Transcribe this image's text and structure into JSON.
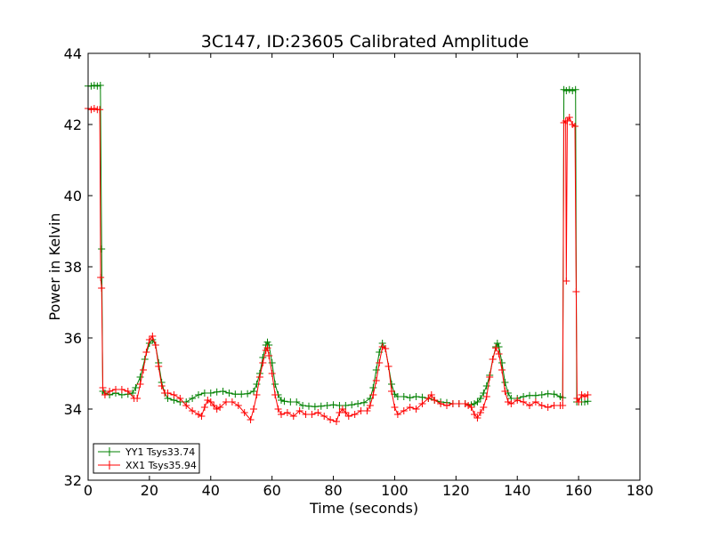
{
  "chart_data": {
    "type": "line",
    "title": "3C147, ID:23605 Calibrated Amplitude",
    "xlabel": "Time (seconds)",
    "ylabel": "Power in Kelvin",
    "xlim": [
      0,
      180
    ],
    "ylim": [
      32,
      44
    ],
    "xticks": [
      0,
      20,
      40,
      60,
      80,
      100,
      120,
      140,
      160,
      180
    ],
    "yticks": [
      32,
      34,
      36,
      38,
      40,
      42,
      44
    ],
    "grid": false,
    "legend_position": "lower-left",
    "marker": "plus",
    "series": [
      {
        "name": "YY1 Tsys33.74",
        "color": "#008000",
        "points": [
          [
            0,
            43.08
          ],
          [
            1,
            43.08
          ],
          [
            2,
            43.1
          ],
          [
            3,
            43.08
          ],
          [
            4,
            43.1
          ],
          [
            4.4,
            38.5
          ],
          [
            4.8,
            34.5
          ],
          [
            5.5,
            34.45
          ],
          [
            7,
            34.4
          ],
          [
            9,
            34.45
          ],
          [
            11,
            34.4
          ],
          [
            13,
            34.42
          ],
          [
            14.5,
            34.45
          ],
          [
            15.5,
            34.6
          ],
          [
            17,
            34.9
          ],
          [
            18.5,
            35.4
          ],
          [
            20,
            35.85
          ],
          [
            21,
            35.95
          ],
          [
            22,
            35.8
          ],
          [
            23,
            35.3
          ],
          [
            24,
            34.75
          ],
          [
            25,
            34.45
          ],
          [
            26,
            34.3
          ],
          [
            28,
            34.25
          ],
          [
            30,
            34.2
          ],
          [
            32,
            34.2
          ],
          [
            34,
            34.3
          ],
          [
            36,
            34.4
          ],
          [
            38,
            34.45
          ],
          [
            40,
            34.45
          ],
          [
            42,
            34.48
          ],
          [
            44,
            34.5
          ],
          [
            46,
            34.45
          ],
          [
            48,
            34.42
          ],
          [
            50,
            34.42
          ],
          [
            52,
            34.43
          ],
          [
            54,
            34.5
          ],
          [
            55,
            34.7
          ],
          [
            56,
            35.0
          ],
          [
            57,
            35.45
          ],
          [
            58,
            35.8
          ],
          [
            58.5,
            35.88
          ],
          [
            59,
            35.8
          ],
          [
            60,
            35.3
          ],
          [
            61,
            34.7
          ],
          [
            62,
            34.4
          ],
          [
            63,
            34.25
          ],
          [
            64,
            34.22
          ],
          [
            66,
            34.2
          ],
          [
            68,
            34.2
          ],
          [
            70,
            34.1
          ],
          [
            72,
            34.08
          ],
          [
            74,
            34.07
          ],
          [
            76,
            34.08
          ],
          [
            78,
            34.1
          ],
          [
            80,
            34.12
          ],
          [
            82,
            34.1
          ],
          [
            84,
            34.1
          ],
          [
            86,
            34.12
          ],
          [
            88,
            34.15
          ],
          [
            90,
            34.18
          ],
          [
            92,
            34.3
          ],
          [
            93,
            34.6
          ],
          [
            94,
            35.1
          ],
          [
            95,
            35.6
          ],
          [
            96,
            35.85
          ],
          [
            97,
            35.7
          ],
          [
            98,
            35.2
          ],
          [
            99,
            34.7
          ],
          [
            100,
            34.42
          ],
          [
            101,
            34.35
          ],
          [
            103,
            34.35
          ],
          [
            105,
            34.32
          ],
          [
            107,
            34.35
          ],
          [
            109,
            34.33
          ],
          [
            111,
            34.3
          ],
          [
            113,
            34.25
          ],
          [
            115,
            34.2
          ],
          [
            117,
            34.18
          ],
          [
            119,
            34.15
          ],
          [
            121,
            34.15
          ],
          [
            123,
            34.15
          ],
          [
            125,
            34.12
          ],
          [
            126,
            34.15
          ],
          [
            127,
            34.2
          ],
          [
            128,
            34.3
          ],
          [
            129,
            34.45
          ],
          [
            130,
            34.65
          ],
          [
            131,
            34.95
          ],
          [
            132,
            35.4
          ],
          [
            133,
            35.75
          ],
          [
            133.5,
            35.85
          ],
          [
            134,
            35.75
          ],
          [
            135,
            35.3
          ],
          [
            136,
            34.75
          ],
          [
            137,
            34.45
          ],
          [
            138,
            34.3
          ],
          [
            140,
            34.3
          ],
          [
            142,
            34.35
          ],
          [
            144,
            34.38
          ],
          [
            146,
            34.38
          ],
          [
            148,
            34.4
          ],
          [
            150,
            34.43
          ],
          [
            152,
            34.42
          ],
          [
            154,
            34.35
          ],
          [
            154.8,
            34.32
          ],
          [
            155.2,
            42.98
          ],
          [
            156,
            42.95
          ],
          [
            157,
            42.98
          ],
          [
            158,
            42.95
          ],
          [
            159,
            42.98
          ],
          [
            159.4,
            34.2
          ],
          [
            160,
            34.2
          ],
          [
            161,
            34.2
          ],
          [
            162,
            34.2
          ],
          [
            163,
            34.22
          ]
        ]
      },
      {
        "name": "XX1 Tsys35.94",
        "color": "#ff0000",
        "points": [
          [
            0,
            42.45
          ],
          [
            1,
            42.42
          ],
          [
            2,
            42.45
          ],
          [
            3,
            42.42
          ],
          [
            3.8,
            42.42
          ],
          [
            4.1,
            37.7
          ],
          [
            4.4,
            37.4
          ],
          [
            4.8,
            34.6
          ],
          [
            5.5,
            34.4
          ],
          [
            7,
            34.5
          ],
          [
            9,
            34.55
          ],
          [
            11,
            34.55
          ],
          [
            13,
            34.5
          ],
          [
            15,
            34.3
          ],
          [
            16,
            34.3
          ],
          [
            17,
            34.7
          ],
          [
            18,
            35.1
          ],
          [
            19,
            35.6
          ],
          [
            20,
            35.95
          ],
          [
            21,
            36.05
          ],
          [
            22,
            35.8
          ],
          [
            23,
            35.2
          ],
          [
            24,
            34.65
          ],
          [
            25,
            34.45
          ],
          [
            26,
            34.45
          ],
          [
            28,
            34.4
          ],
          [
            30,
            34.3
          ],
          [
            32,
            34.1
          ],
          [
            34,
            33.95
          ],
          [
            36,
            33.85
          ],
          [
            37,
            33.8
          ],
          [
            38,
            34.05
          ],
          [
            39,
            34.25
          ],
          [
            40,
            34.2
          ],
          [
            41,
            34.1
          ],
          [
            42,
            34.0
          ],
          [
            43,
            34.05
          ],
          [
            45,
            34.2
          ],
          [
            47,
            34.2
          ],
          [
            49,
            34.1
          ],
          [
            51,
            33.9
          ],
          [
            53,
            33.7
          ],
          [
            54,
            34.0
          ],
          [
            55,
            34.4
          ],
          [
            56,
            34.9
          ],
          [
            57,
            35.3
          ],
          [
            58,
            35.65
          ],
          [
            58.5,
            35.72
          ],
          [
            59,
            35.5
          ],
          [
            60,
            35.0
          ],
          [
            61,
            34.4
          ],
          [
            62,
            34.0
          ],
          [
            63,
            33.85
          ],
          [
            65,
            33.9
          ],
          [
            67,
            33.8
          ],
          [
            69,
            33.95
          ],
          [
            71,
            33.85
          ],
          [
            73,
            33.85
          ],
          [
            75,
            33.9
          ],
          [
            77,
            33.8
          ],
          [
            79,
            33.7
          ],
          [
            81,
            33.65
          ],
          [
            82,
            33.9
          ],
          [
            83,
            34.0
          ],
          [
            84,
            33.9
          ],
          [
            85,
            33.8
          ],
          [
            87,
            33.85
          ],
          [
            89,
            33.95
          ],
          [
            91,
            33.95
          ],
          [
            92,
            34.1
          ],
          [
            93,
            34.4
          ],
          [
            94,
            34.8
          ],
          [
            95,
            35.3
          ],
          [
            96,
            35.75
          ],
          [
            97,
            35.7
          ],
          [
            98,
            35.2
          ],
          [
            99,
            34.5
          ],
          [
            100,
            34.05
          ],
          [
            101,
            33.85
          ],
          [
            103,
            33.95
          ],
          [
            105,
            34.05
          ],
          [
            107,
            34.0
          ],
          [
            109,
            34.15
          ],
          [
            111,
            34.3
          ],
          [
            112,
            34.4
          ],
          [
            113,
            34.25
          ],
          [
            115,
            34.15
          ],
          [
            117,
            34.1
          ],
          [
            119,
            34.15
          ],
          [
            121,
            34.15
          ],
          [
            123,
            34.15
          ],
          [
            124,
            34.1
          ],
          [
            125,
            34.05
          ],
          [
            126,
            33.85
          ],
          [
            127,
            33.75
          ],
          [
            128,
            33.9
          ],
          [
            129,
            34.05
          ],
          [
            130,
            34.35
          ],
          [
            131,
            34.9
          ],
          [
            132,
            35.4
          ],
          [
            133,
            35.72
          ],
          [
            134,
            35.55
          ],
          [
            135,
            35.1
          ],
          [
            136,
            34.5
          ],
          [
            137,
            34.2
          ],
          [
            138,
            34.15
          ],
          [
            140,
            34.25
          ],
          [
            142,
            34.2
          ],
          [
            144,
            34.1
          ],
          [
            146,
            34.2
          ],
          [
            148,
            34.1
          ],
          [
            150,
            34.05
          ],
          [
            152,
            34.1
          ],
          [
            154,
            34.1
          ],
          [
            154.8,
            34.1
          ],
          [
            155.2,
            42.05
          ],
          [
            155.8,
            42.1
          ],
          [
            156,
            37.6
          ],
          [
            156.3,
            42.1
          ],
          [
            157,
            42.2
          ],
          [
            158,
            42.0
          ],
          [
            158.8,
            41.95
          ],
          [
            159.2,
            37.3
          ],
          [
            159.5,
            34.3
          ],
          [
            160,
            34.2
          ],
          [
            161,
            34.4
          ],
          [
            162,
            34.35
          ],
          [
            163,
            34.4
          ]
        ]
      }
    ]
  }
}
